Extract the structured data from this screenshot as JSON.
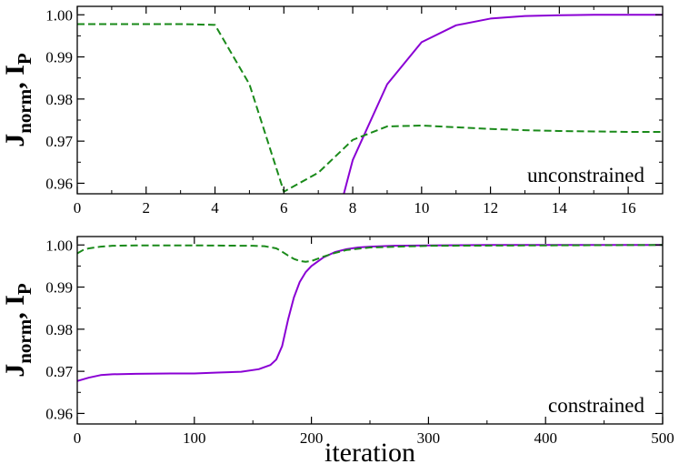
{
  "chart_data": [
    {
      "type": "line",
      "annotation": "unconstrained",
      "ylabel": {
        "main": "J",
        "sub": "norm",
        "sep": ", ",
        "main2": "I",
        "sub2": "P"
      },
      "xlabel": "",
      "xlim": [
        0,
        17
      ],
      "ylim": [
        0.9575,
        1.002
      ],
      "xticks": [
        0,
        2,
        4,
        6,
        8,
        10,
        12,
        14,
        16
      ],
      "yticks": [
        0.96,
        0.97,
        0.98,
        0.99,
        1.0
      ],
      "ytick_labels": [
        "0.96",
        "0.97",
        "0.98",
        "0.99",
        "1.00"
      ],
      "grid": false,
      "series": [
        {
          "color": "#8a00d4",
          "style": "solid",
          "x": [
            7.5,
            8,
            9,
            10,
            11,
            12,
            13,
            14,
            15,
            16,
            17
          ],
          "y": [
            0.95,
            0.9655,
            0.9835,
            0.9935,
            0.9975,
            0.9991,
            0.9997,
            0.9999,
            1.0,
            1.0,
            1.0
          ]
        },
        {
          "color": "#1a8a1a",
          "style": "dashed",
          "x": [
            0,
            1,
            2,
            3,
            4,
            5,
            6,
            7,
            8,
            9,
            10,
            11,
            12,
            13,
            14,
            15,
            16,
            17
          ],
          "y": [
            0.9978,
            0.9978,
            0.9978,
            0.9978,
            0.9976,
            0.9835,
            0.958,
            0.9625,
            0.9703,
            0.9735,
            0.9737,
            0.9733,
            0.9729,
            0.9726,
            0.9724,
            0.9723,
            0.9722,
            0.9722
          ]
        }
      ]
    },
    {
      "type": "line",
      "annotation": "constrained",
      "ylabel": {
        "main": "J",
        "sub": "norm",
        "sep": ", ",
        "main2": "I",
        "sub2": "P"
      },
      "xlabel": "iteration",
      "xlim": [
        0,
        500
      ],
      "ylim": [
        0.9575,
        1.002
      ],
      "xticks": [
        0,
        100,
        200,
        300,
        400,
        500
      ],
      "yticks": [
        0.96,
        0.97,
        0.98,
        0.99,
        1.0
      ],
      "ytick_labels": [
        "0.96",
        "0.97",
        "0.98",
        "0.99",
        "1.00"
      ],
      "grid": false,
      "series": [
        {
          "color": "#8a00d4",
          "style": "solid",
          "x": [
            0,
            10,
            20,
            30,
            50,
            80,
            100,
            120,
            140,
            155,
            165,
            170,
            175,
            180,
            185,
            190,
            195,
            200,
            210,
            220,
            230,
            240,
            250,
            270,
            300,
            350,
            400,
            450,
            500
          ],
          "y": [
            0.9677,
            0.9685,
            0.9691,
            0.9693,
            0.9694,
            0.9695,
            0.9695,
            0.9697,
            0.9699,
            0.9705,
            0.9715,
            0.9728,
            0.976,
            0.9822,
            0.9875,
            0.9912,
            0.9935,
            0.995,
            0.997,
            0.9983,
            0.999,
            0.9994,
            0.9996,
            0.9998,
            0.9999,
            1.0,
            1.0,
            1.0,
            1.0
          ]
        },
        {
          "color": "#1a8a1a",
          "style": "dashed",
          "x": [
            0,
            5,
            10,
            20,
            30,
            50,
            100,
            150,
            160,
            170,
            175,
            180,
            185,
            190,
            195,
            200,
            210,
            220,
            230,
            250,
            300,
            400,
            500
          ],
          "y": [
            0.998,
            0.9988,
            0.9992,
            0.9996,
            0.9998,
            0.9999,
            0.9999,
            0.9998,
            0.9997,
            0.9992,
            0.9984,
            0.9975,
            0.9967,
            0.9962,
            0.996,
            0.9962,
            0.9972,
            0.9981,
            0.9988,
            0.9994,
            0.9998,
            0.9999,
            1.0
          ]
        }
      ]
    }
  ]
}
